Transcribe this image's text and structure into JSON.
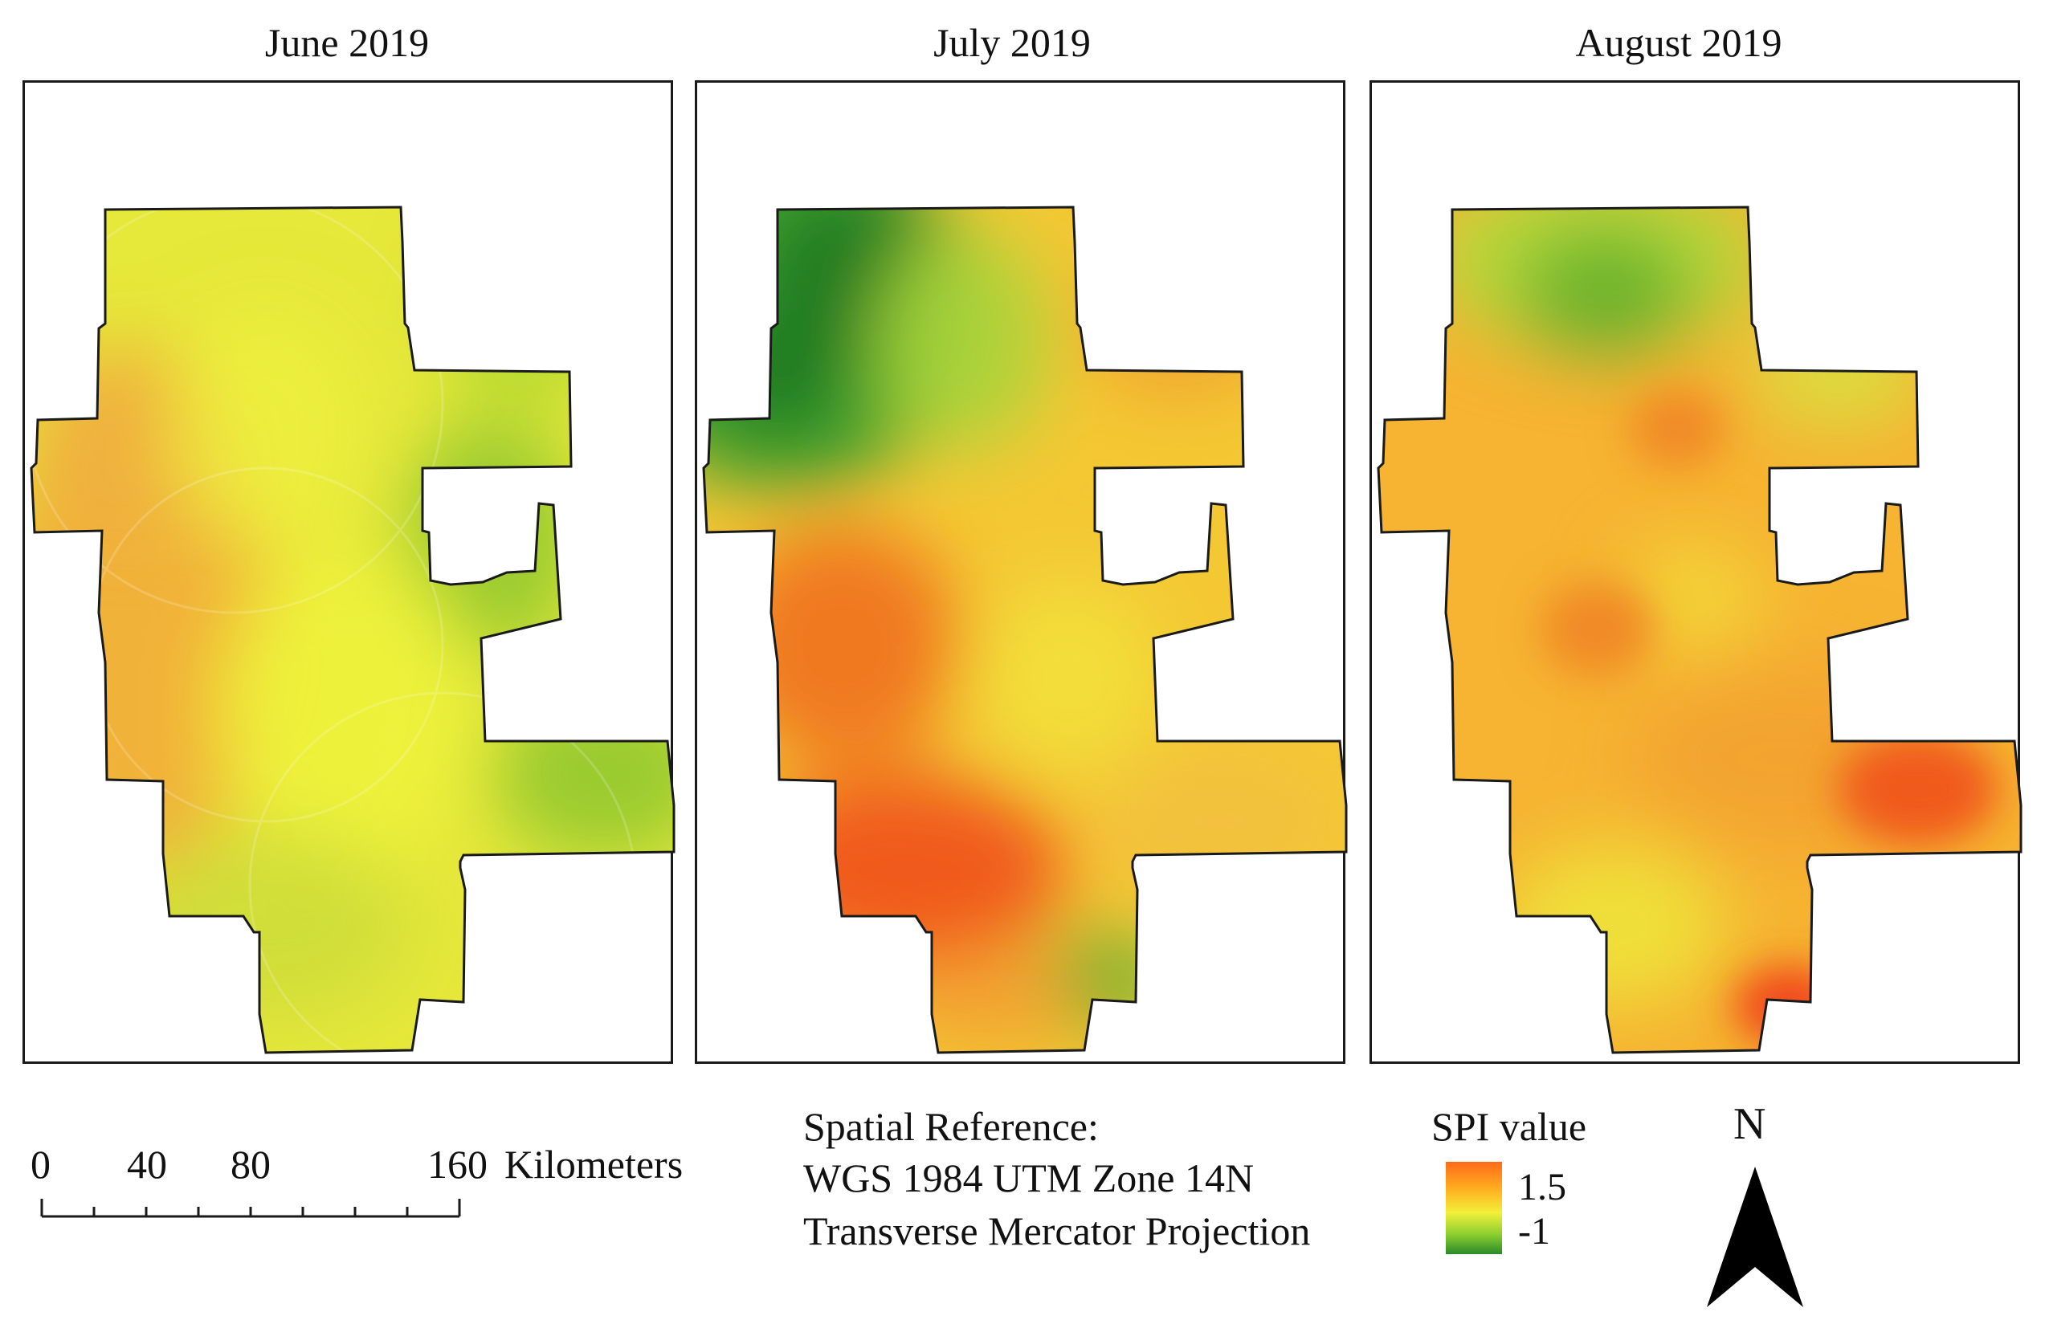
{
  "panels": [
    {
      "title": "June 2019"
    },
    {
      "title": "July 2019"
    },
    {
      "title": "August 2019"
    }
  ],
  "scale_bar": {
    "ticks": [
      "0",
      "40",
      "80",
      "160"
    ],
    "unit": "Kilometers"
  },
  "spatial_reference": {
    "line1": "Spatial Reference:",
    "line2": "WGS 1984 UTM Zone 14N",
    "line3": "Transverse Mercator Projection"
  },
  "legend": {
    "title": "SPI value",
    "high": "1.5",
    "low": "-1",
    "colors": {
      "high": "#ff5a1a",
      "mid": "#f2f03a",
      "low": "#1f7f2a"
    }
  },
  "north_arrow": {
    "label": "N"
  }
}
